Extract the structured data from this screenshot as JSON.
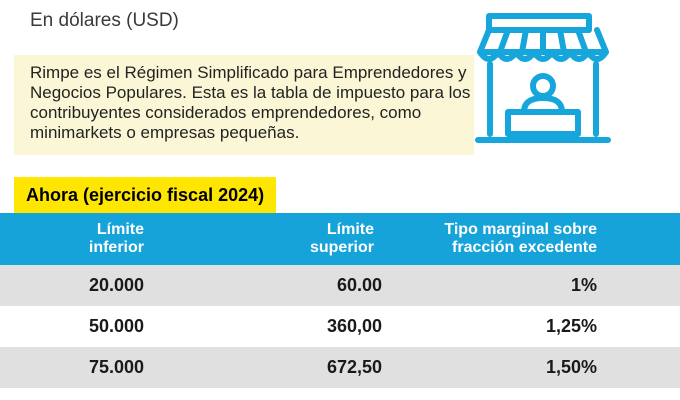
{
  "header": {
    "currency_note": "En dólares (USD)"
  },
  "info": {
    "text": "Rimpe es el Régimen Simplificado para Emprendedores y Negocios Populares. Esta es la tabla de impuesto para los contribuyentes considerados emprendedores, como minimarkets o empresas pequeñas.",
    "icon": "store-icon",
    "icon_color": "#16a6dc",
    "box_color": "#fbf7d6"
  },
  "section": {
    "title": "Ahora (ejercicio fiscal 2024)",
    "title_bg": "#ffe600"
  },
  "table": {
    "header_bg": "#15a3d9",
    "columns": [
      {
        "line1": "Límite",
        "line2": "inferior"
      },
      {
        "line1": "Límite",
        "line2": "superior"
      },
      {
        "line1": "Tipo marginal sobre",
        "line2": "fracción excedente"
      }
    ],
    "rows": [
      {
        "lower": "20.000",
        "upper": "60.00",
        "rate": "1%"
      },
      {
        "lower": "50.000",
        "upper": "360,00",
        "rate": "1,25%"
      },
      {
        "lower": "75.000",
        "upper": "672,50",
        "rate": "1,50%"
      }
    ]
  }
}
